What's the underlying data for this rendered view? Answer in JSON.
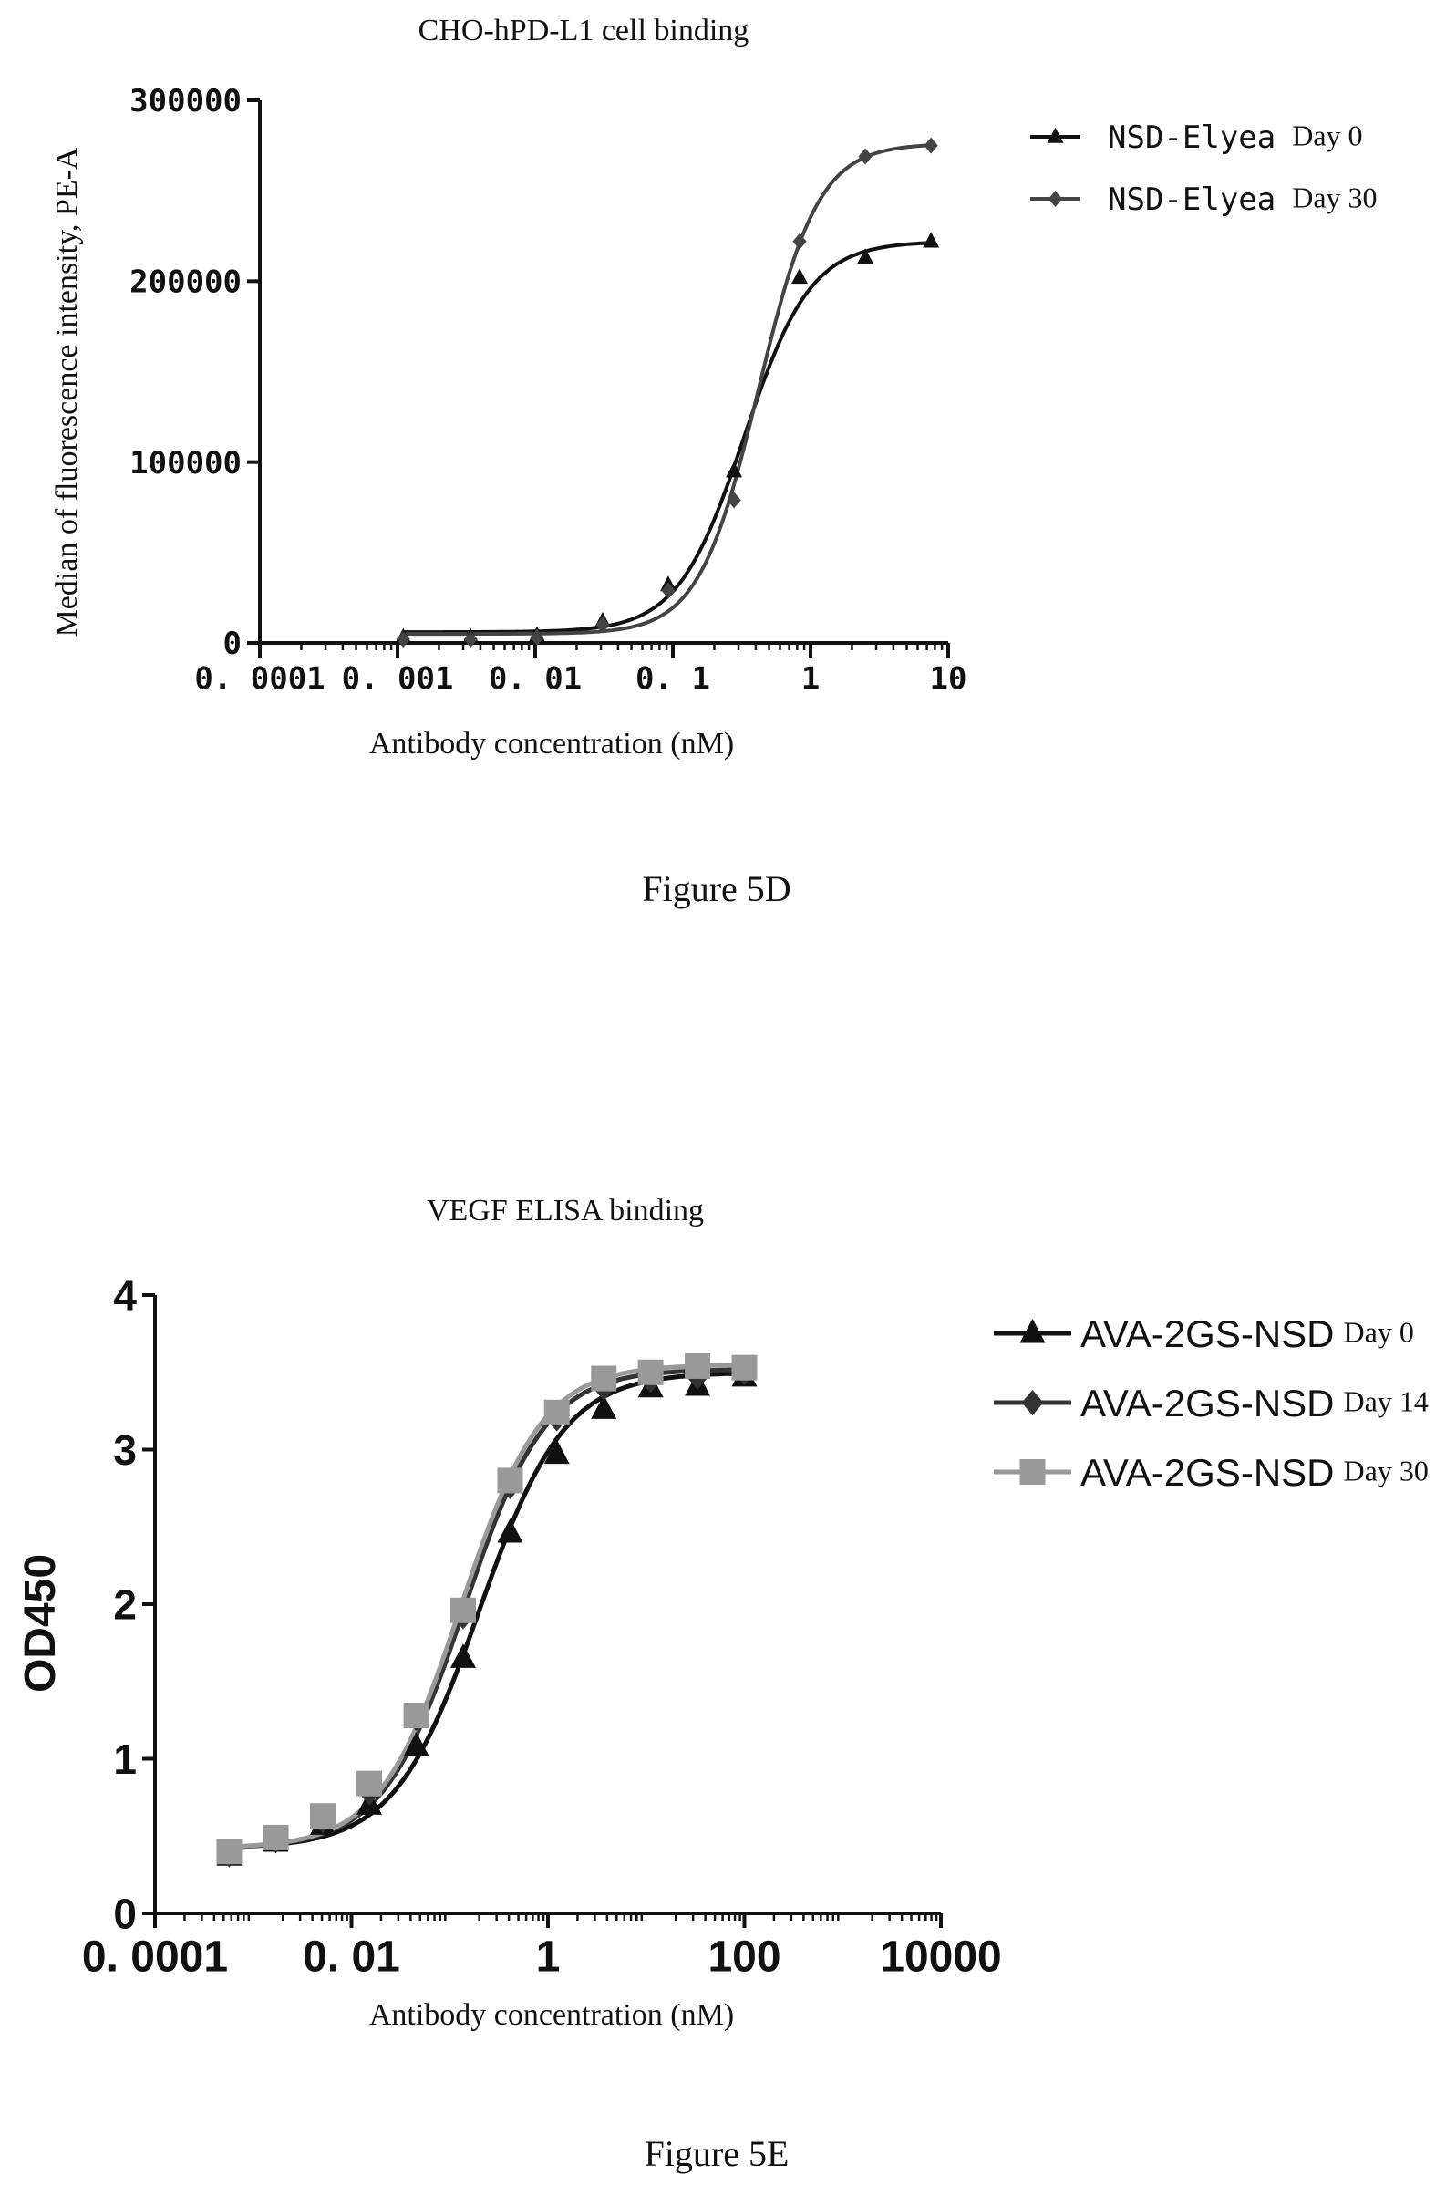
{
  "chart_data": [
    {
      "type": "scatter",
      "title": "CHO-hPD-L1 cell binding",
      "xlabel": "Antibody concentration (nM)",
      "ylabel": "Median of fluorescence intensity, PE-A",
      "x_scale": "log",
      "xlim": [
        0.0001,
        10
      ],
      "ylim": [
        0,
        300000
      ],
      "x_ticks": [
        0.0001,
        0.001,
        0.01,
        0.1,
        1,
        10
      ],
      "x_tick_labels": [
        "0. 0001",
        "0. 001",
        "0. 01",
        "0. 1",
        "1",
        "10"
      ],
      "y_ticks": [
        0,
        100000,
        200000,
        300000
      ],
      "y_tick_labels": [
        "0",
        "100000",
        "200000",
        "300000"
      ],
      "legend_position": "right",
      "figure_caption": "Figure 5D",
      "series": [
        {
          "name": "NSD-Elyea",
          "legend_suffix": "Day 0",
          "marker": "triangle",
          "color": "#111111",
          "fit": {
            "bottom": 6000,
            "top": 222000,
            "ec50": 0.33,
            "hill": 1.8
          },
          "x": [
            0.0011,
            0.0034,
            0.0103,
            0.0309,
            0.0926,
            0.278,
            0.833,
            2.5,
            7.5
          ],
          "y": [
            3000,
            3000,
            4000,
            12000,
            32000,
            95000,
            202000,
            213000,
            222000
          ]
        },
        {
          "name": "NSD-Elyea",
          "legend_suffix": "Day 30",
          "marker": "diamond",
          "color": "#444444",
          "fit": {
            "bottom": 5000,
            "top": 276000,
            "ec50": 0.42,
            "hill": 2.0
          },
          "x": [
            0.0011,
            0.0034,
            0.0103,
            0.0309,
            0.0926,
            0.278,
            0.833,
            2.5,
            7.5
          ],
          "y": [
            2000,
            2000,
            3000,
            10000,
            29000,
            79000,
            222000,
            269000,
            275000
          ]
        }
      ]
    },
    {
      "type": "scatter",
      "title": "VEGF ELISA binding",
      "xlabel": "Antibody concentration (nM)",
      "ylabel": "OD450",
      "x_scale": "log",
      "xlim": [
        0.0001,
        10000
      ],
      "ylim": [
        0,
        4
      ],
      "x_ticks": [
        0.0001,
        0.01,
        1,
        100,
        10000
      ],
      "x_tick_labels": [
        "0. 0001",
        "0. 01",
        "1",
        "100",
        "10000"
      ],
      "y_ticks": [
        0,
        1,
        2,
        3,
        4
      ],
      "y_tick_labels": [
        "0",
        "1",
        "2",
        "3",
        "4"
      ],
      "legend_position": "right",
      "figure_caption": "Figure 5E",
      "series": [
        {
          "name": "AVA-2GS-NSD",
          "legend_suffix": "Day 0",
          "marker": "triangle",
          "color": "#111111",
          "fit": {
            "bottom": 0.42,
            "top": 3.5,
            "ec50": 0.2,
            "hill": 1.0
          },
          "x": [
            0.00057,
            0.0017,
            0.0051,
            0.0152,
            0.0457,
            0.137,
            0.412,
            1.23,
            3.7,
            11.1,
            33.3,
            100
          ],
          "y": [
            0.37,
            0.46,
            0.57,
            0.7,
            1.08,
            1.65,
            2.46,
            2.97,
            3.26,
            3.4,
            3.41,
            3.47
          ]
        },
        {
          "name": "AVA-2GS-NSD",
          "legend_suffix": "Day 14",
          "marker": "diamond",
          "color": "#333333",
          "fit": {
            "bottom": 0.42,
            "top": 3.52,
            "ec50": 0.14,
            "hill": 1.05
          },
          "x": [
            0.00057,
            0.0017,
            0.0051,
            0.0152,
            0.0457,
            0.137,
            0.412,
            1.23,
            3.7,
            11.1,
            33.3,
            100
          ],
          "y": [
            0.38,
            0.47,
            0.6,
            0.78,
            1.26,
            1.92,
            2.76,
            3.2,
            3.4,
            3.45,
            3.47,
            3.5
          ]
        },
        {
          "name": "AVA-2GS-NSD",
          "legend_suffix": "Day 30",
          "marker": "square",
          "color": "#999999",
          "fit": {
            "bottom": 0.42,
            "top": 3.55,
            "ec50": 0.13,
            "hill": 1.05
          },
          "x": [
            0.00057,
            0.0017,
            0.0051,
            0.0152,
            0.0457,
            0.137,
            0.412,
            1.23,
            3.7,
            11.1,
            33.3,
            100
          ],
          "y": [
            0.4,
            0.49,
            0.63,
            0.84,
            1.28,
            1.96,
            2.8,
            3.24,
            3.46,
            3.5,
            3.54,
            3.53
          ]
        }
      ]
    }
  ]
}
